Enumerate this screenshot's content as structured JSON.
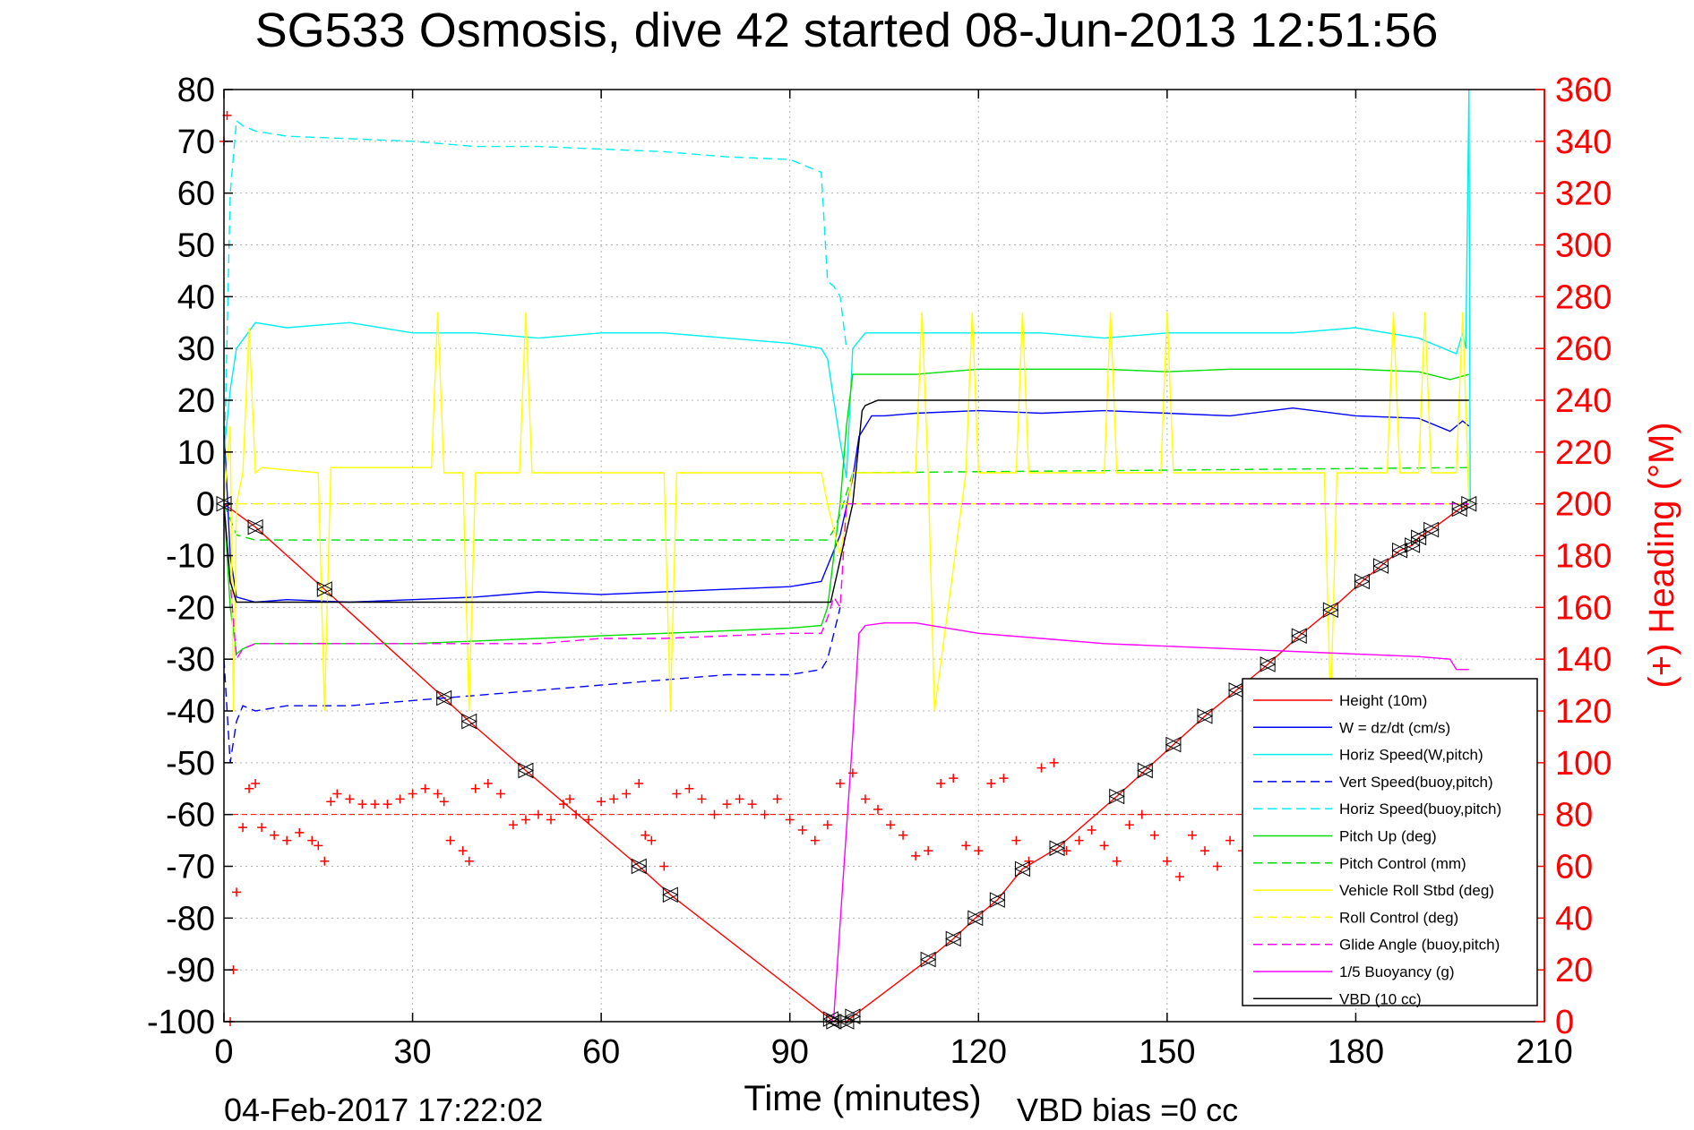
{
  "chart_data": {
    "type": "line",
    "title": "SG533 Osmosis, dive 42 started 08-Jun-2013 12:51:56",
    "xlabel": "Time (minutes)",
    "ylabel_right": "(+) Heading (°M)",
    "footer_left": "04-Feb-2017 17:22:02",
    "footer_right": "VBD bias =0 cc",
    "xlim": [
      0,
      210
    ],
    "ylim": [
      -100,
      80
    ],
    "ylim_right": [
      0,
      360
    ],
    "x_ticks": [
      0,
      30,
      60,
      90,
      120,
      150,
      180,
      210
    ],
    "y_ticks": [
      80,
      70,
      60,
      50,
      40,
      30,
      20,
      10,
      0,
      -10,
      -20,
      -30,
      -40,
      -50,
      -60,
      -70,
      -80,
      -90,
      -100
    ],
    "y_ticks_right": [
      360,
      340,
      320,
      300,
      280,
      260,
      240,
      220,
      200,
      180,
      160,
      140,
      120,
      100,
      80,
      60,
      40,
      20,
      0
    ],
    "grid": true,
    "legend_position": "lower-right",
    "colors": {
      "right_axis": "#ff0000"
    },
    "series": [
      {
        "name": "Height (10m)",
        "color": "#ff0000",
        "dash": "solid",
        "marker": "triangles",
        "x": [
          0,
          5,
          16,
          35,
          39,
          48,
          66,
          71,
          96.5,
          97,
          99,
          100,
          112,
          116,
          119.5,
          123,
          127,
          132.5,
          142,
          146.5,
          151,
          156,
          161,
          166,
          171,
          176,
          181,
          184,
          187,
          189,
          190,
          192,
          196.5,
          198
        ],
        "y": [
          0,
          -4.5,
          -16.5,
          -37.5,
          -42,
          -51.5,
          -70,
          -75.5,
          -99.5,
          -100,
          -100,
          -99,
          -88,
          -84,
          -80,
          -76.5,
          -70.5,
          -66.5,
          -56.5,
          -51.5,
          -46.5,
          -41,
          -36,
          -31,
          -25.5,
          -20.5,
          -15,
          -12,
          -9,
          -8,
          -6.5,
          -5,
          -1,
          0
        ]
      },
      {
        "name": "W = dz/dt (cm/s)",
        "color": "#0000ff",
        "dash": "solid",
        "x": [
          0,
          1,
          2,
          5,
          10,
          20,
          30,
          40,
          50,
          60,
          70,
          80,
          90,
          95,
          96,
          98,
          100,
          101,
          103,
          105,
          110,
          120,
          130,
          140,
          150,
          160,
          170,
          180,
          190,
          195,
          197,
          198
        ],
        "y": [
          15,
          -10,
          -18,
          -19,
          -18.5,
          -19,
          -18.5,
          -18,
          -17,
          -17.5,
          -17,
          -16.5,
          -16,
          -15,
          -12,
          -6,
          5,
          13,
          17,
          17,
          17.5,
          18,
          17.5,
          18,
          17.5,
          17,
          18.5,
          17,
          16.5,
          14,
          16,
          15
        ]
      },
      {
        "name": "Horiz Speed(W,pitch)",
        "color": "#00eeee",
        "dash": "solid",
        "x": [
          0,
          1,
          2,
          5,
          10,
          20,
          30,
          40,
          50,
          60,
          70,
          80,
          90,
          95,
          96,
          97,
          98,
          99,
          100,
          102,
          110,
          120,
          130,
          140,
          150,
          160,
          170,
          180,
          190,
          196,
          197,
          197.5,
          198,
          198.2
        ],
        "y": [
          10,
          22,
          30,
          35,
          34,
          35,
          33,
          33,
          32,
          33,
          33,
          32,
          31,
          30,
          28,
          20,
          12,
          5,
          30,
          33,
          33,
          33,
          33,
          32,
          33,
          33,
          33,
          34,
          32,
          29,
          33,
          30,
          80,
          0
        ]
      },
      {
        "name": "Vert Speed(buoy,pitch)",
        "color": "#0000ff",
        "dash": "dashed",
        "x": [
          0,
          1,
          2,
          3,
          5,
          10,
          20,
          30,
          40,
          50,
          60,
          70,
          80,
          90,
          95,
          96,
          98
        ],
        "y": [
          -30,
          -50,
          -42,
          -39,
          -40,
          -39,
          -39,
          -38,
          -37,
          -36,
          -35,
          -34,
          -33,
          -33,
          -32,
          -30,
          -20
        ]
      },
      {
        "name": "Horiz Speed(buoy,pitch)",
        "color": "#00eeee",
        "dash": "dashed",
        "x": [
          0,
          1,
          2,
          3,
          5,
          10,
          20,
          30,
          40,
          50,
          60,
          70,
          80,
          90,
          95,
          96,
          97,
          98,
          99
        ],
        "y": [
          5,
          60,
          74,
          73,
          72,
          71,
          70.5,
          70,
          69,
          69,
          68.5,
          68,
          67,
          66.5,
          64,
          43,
          42,
          40,
          30
        ]
      },
      {
        "name": "Pitch Up (deg)",
        "color": "#00dd00",
        "dash": "solid",
        "x": [
          0,
          1,
          2,
          3,
          5,
          10,
          20,
          30,
          40,
          50,
          60,
          70,
          80,
          90,
          95,
          96,
          97,
          98,
          99,
          100,
          102,
          110,
          120,
          130,
          140,
          150,
          160,
          170,
          180,
          190,
          195,
          198
        ],
        "y": [
          0,
          -20,
          -29,
          -28,
          -27,
          -27,
          -27,
          -27,
          -26.5,
          -26,
          -25.5,
          -25,
          -24.5,
          -24,
          -23.5,
          -20,
          -10,
          0,
          15,
          25,
          25,
          25,
          26,
          26,
          26,
          25.5,
          26,
          26,
          26,
          25.5,
          24,
          25
        ]
      },
      {
        "name": "Pitch Control (mm)",
        "color": "#00dd00",
        "dash": "dashed",
        "x": [
          0,
          2,
          5,
          96,
          97,
          98,
          99,
          100,
          198
        ],
        "y": [
          0,
          -6,
          -7,
          -7,
          -5,
          -2,
          2,
          6,
          7
        ]
      },
      {
        "name": "Vehicle Roll Stbd (deg)",
        "color": "#ffff00",
        "dash": "solid",
        "x": [
          0,
          1,
          1.5,
          2,
          3,
          4,
          5,
          6,
          15,
          16,
          17,
          30,
          33,
          34,
          35,
          38,
          39,
          40,
          47,
          48,
          49,
          70,
          71,
          72,
          95,
          96,
          98,
          100,
          110,
          111,
          112,
          113,
          118,
          119,
          120,
          126,
          127,
          128,
          140,
          141,
          142,
          149,
          150,
          151,
          175,
          176,
          177,
          185,
          186,
          187,
          190,
          191,
          192,
          196,
          197,
          198
        ],
        "y": [
          0,
          15,
          -40,
          0,
          6,
          34,
          6,
          7,
          6,
          -40,
          7,
          7,
          7,
          37,
          6,
          6,
          -40,
          6,
          6,
          37,
          6,
          6,
          -40,
          6,
          6,
          0,
          -10,
          6,
          6,
          37,
          6,
          -40,
          6,
          37,
          6,
          6,
          37,
          6,
          6,
          37,
          6,
          6,
          37,
          6,
          6,
          -40,
          6,
          6,
          37,
          6,
          6,
          37,
          6,
          6,
          37,
          0
        ]
      },
      {
        "name": "Roll Control (deg)",
        "color": "#ffff00",
        "dash": "dashed",
        "x": [
          0,
          3,
          98,
          99,
          100,
          198
        ],
        "y": [
          0,
          0,
          0,
          0,
          0,
          0
        ]
      },
      {
        "name": "Glide Angle (buoy,pitch)",
        "color": "#ff00ff",
        "dash": "dashed",
        "x": [
          0,
          2,
          3,
          5,
          10,
          20,
          30,
          40,
          50,
          60,
          70,
          80,
          90,
          95,
          96,
          97,
          98,
          99,
          198
        ],
        "y": [
          0,
          -30,
          -28,
          -27,
          -27,
          -27,
          -27,
          -27,
          -27,
          -26,
          -26,
          -25.5,
          -25,
          -25,
          -22,
          -18,
          -20,
          0,
          0
        ]
      },
      {
        "name": "1/5 Buoyancy (g)",
        "color": "#ff00ff",
        "dash": "solid",
        "x": [
          96.5,
          97,
          100,
          101,
          102,
          105,
          110,
          120,
          130,
          140,
          150,
          160,
          170,
          180,
          190,
          195,
          196,
          197,
          198
        ],
        "y": [
          -100,
          -99,
          -45,
          -25,
          -23.5,
          -23,
          -23,
          -25,
          -26,
          -27,
          -27.5,
          -28,
          -28.5,
          -29,
          -29.5,
          -30,
          -32,
          -32,
          -32
        ]
      },
      {
        "name": "VBD (10 cc)",
        "color": "#000000",
        "dash": "solid",
        "x": [
          0,
          1,
          2,
          96,
          96.5,
          100,
          101.5,
          102,
          104,
          198
        ],
        "y": [
          0,
          -15,
          -19,
          -19,
          -19,
          0,
          18,
          19,
          20,
          20
        ]
      }
    ],
    "heading": {
      "axis": "right",
      "marker": "+",
      "color": "#ff0000",
      "mean_dashed": 80,
      "x": [
        0,
        0.5,
        1,
        1.5,
        2,
        3,
        4,
        5,
        6,
        8,
        10,
        12,
        14,
        15,
        16,
        17,
        18,
        20,
        22,
        24,
        26,
        28,
        30,
        32,
        34,
        35,
        36,
        38,
        39,
        40,
        42,
        44,
        46,
        48,
        50,
        52,
        54,
        55,
        56,
        58,
        60,
        62,
        64,
        66,
        67,
        68,
        70,
        72,
        74,
        76,
        78,
        80,
        82,
        84,
        86,
        88,
        90,
        92,
        94,
        96,
        98,
        100,
        102,
        104,
        106,
        108,
        110,
        112,
        114,
        116,
        118,
        120,
        122,
        124,
        126,
        128,
        130,
        132,
        134,
        136,
        138,
        140,
        142,
        144,
        146,
        148,
        150,
        152,
        154,
        156,
        158,
        160,
        162,
        164
      ],
      "y": [
        340,
        350,
        0,
        20,
        50,
        75,
        90,
        92,
        75,
        72,
        70,
        73,
        70,
        68,
        62,
        85,
        88,
        86,
        84,
        84,
        84,
        86,
        88,
        90,
        88,
        85,
        70,
        66,
        62,
        90,
        92,
        88,
        76,
        78,
        80,
        78,
        84,
        86,
        80,
        78,
        85,
        86,
        88,
        92,
        72,
        70,
        60,
        88,
        90,
        86,
        80,
        84,
        86,
        84,
        80,
        86,
        78,
        74,
        70,
        76,
        92,
        96,
        86,
        82,
        76,
        72,
        64,
        66,
        92,
        94,
        68,
        66,
        92,
        94,
        70,
        62,
        98,
        100,
        66,
        70,
        74,
        68,
        62,
        76,
        80,
        72,
        62,
        56,
        72,
        66,
        60,
        70,
        66,
        62
      ]
    }
  }
}
